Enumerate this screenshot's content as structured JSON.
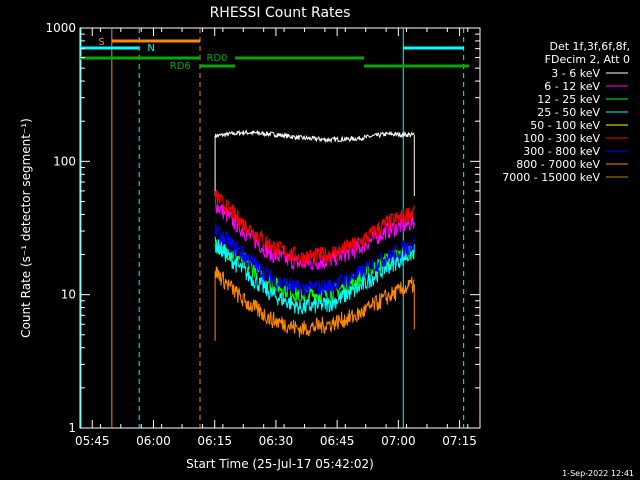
{
  "chart_data": {
    "type": "line",
    "title": "RHESSI Count Rates",
    "xlabel": "Start Time (25-Jul-17 05:42:02)",
    "ylabel": "Count Rate (s⁻¹ detector segment⁻¹)",
    "timestamp": "1-Sep-2022 12:41",
    "x_unit": "minutes after 05:42:02",
    "xlim": [
      0,
      98
    ],
    "ylim": [
      1,
      1000
    ],
    "yscale": "log",
    "x_ticks": [
      "05:45",
      "06:00",
      "06:15",
      "06:30",
      "06:45",
      "07:00",
      "07:15"
    ],
    "x_tick_values": [
      3,
      18,
      33,
      48,
      63,
      78,
      93
    ],
    "y_ticks": [
      "1",
      "10",
      "100",
      "1000"
    ],
    "y_tick_values": [
      1,
      10,
      100,
      1000
    ],
    "legend": {
      "position": "right",
      "header": [
        "Det 1f,3f,6f,8f,",
        "FDecim 2, Att 0"
      ]
    },
    "data_start": 33.1,
    "data_end": 81.9,
    "series": [
      {
        "name": "3 - 6 keV",
        "color": "#ffffff",
        "values": [
          155,
          165,
          160,
          150,
          145,
          148,
          160,
          158
        ]
      },
      {
        "name": "6 - 12 keV",
        "color": "#ff00ff",
        "values": [
          48,
          30,
          20,
          17,
          18,
          22,
          30,
          35
        ]
      },
      {
        "name": "12 - 25 keV",
        "color": "#00ff00",
        "values": [
          24,
          18,
          12,
          10,
          10,
          13,
          18,
          22
        ]
      },
      {
        "name": "25 - 50 keV",
        "color": "#00ffff",
        "values": [
          24,
          15,
          10,
          8,
          8.5,
          11,
          16,
          21
        ]
      },
      {
        "name": "50 - 100 keV",
        "color": "#ffff00",
        "values": []
      },
      {
        "name": "100 - 300 keV",
        "color": "#ff0000",
        "values": [
          55,
          34,
          23,
          19,
          20,
          24,
          34,
          42
        ]
      },
      {
        "name": "300 - 800 keV",
        "color": "#0000ff",
        "values": [
          30,
          20,
          13,
          11,
          11.5,
          14,
          19,
          24
        ]
      },
      {
        "name": "800 - 7000 keV",
        "color": "#ff8800",
        "values": [
          15,
          9,
          6.5,
          5.5,
          6,
          7,
          9.5,
          12
        ]
      },
      {
        "name": "7000 - 15000 keV",
        "color": "#b8860b",
        "values": []
      }
    ],
    "annotations": [
      {
        "label": "S",
        "color": "#ff8800"
      },
      {
        "label": "N",
        "color": "#00ffff"
      },
      {
        "label": "RD0",
        "color": "#00aa00"
      },
      {
        "label": "RD6",
        "color": "#00aa00"
      }
    ],
    "vertical_lines": [
      {
        "x": 7.8,
        "color": "#ff8800",
        "style": "solid"
      },
      {
        "x": 14.5,
        "color": "#00ffff",
        "style": "dashed"
      },
      {
        "x": 29.4,
        "color": "#ff8800",
        "style": "dashed"
      },
      {
        "x": 79.2,
        "color": "#00ffff",
        "style": "solid"
      },
      {
        "x": 94.0,
        "color": "#00ffff",
        "style": "dashed"
      }
    ]
  }
}
